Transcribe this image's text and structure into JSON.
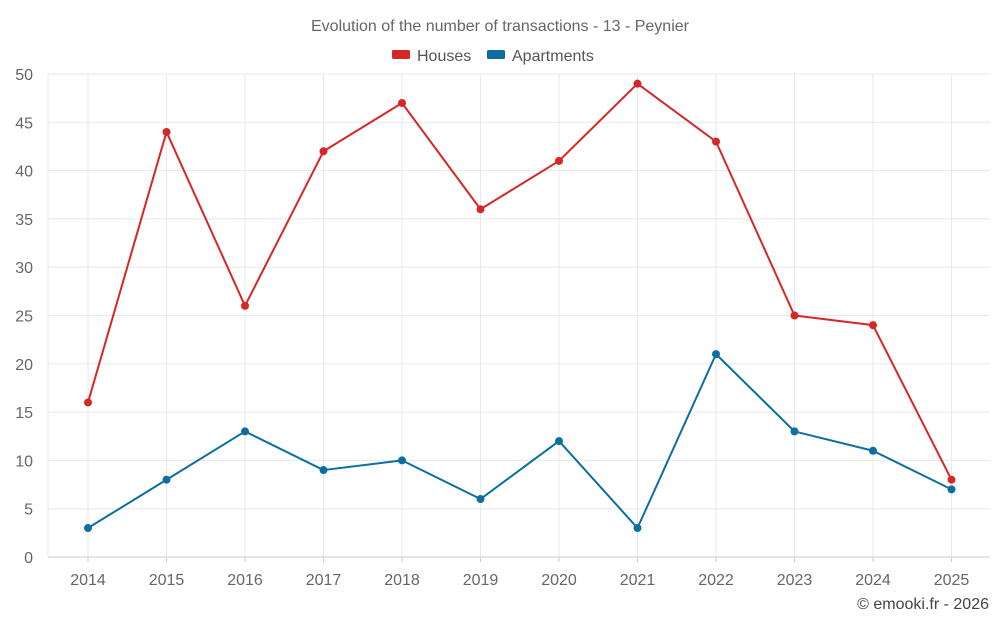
{
  "chart_data": {
    "type": "line",
    "title": "Evolution of the number of transactions - 13 - Peynier",
    "categories": [
      "2014",
      "2015",
      "2016",
      "2017",
      "2018",
      "2019",
      "2020",
      "2021",
      "2022",
      "2023",
      "2024",
      "2025"
    ],
    "series": [
      {
        "name": "Houses",
        "color": "#d62728",
        "values": [
          16,
          44,
          26,
          42,
          47,
          36,
          41,
          49,
          43,
          25,
          24,
          8
        ]
      },
      {
        "name": "Apartments",
        "color": "#0d6ea0",
        "values": [
          3,
          8,
          13,
          9,
          10,
          6,
          12,
          3,
          21,
          13,
          11,
          7
        ]
      }
    ],
    "yticks": [
      0,
      5,
      10,
      15,
      20,
      25,
      30,
      35,
      40,
      45,
      50
    ],
    "ylim": [
      0,
      50
    ],
    "xlabel": "",
    "ylabel": "",
    "grid": true,
    "legend_position": "top-center"
  },
  "credit": "© emooki.fr - 2026"
}
